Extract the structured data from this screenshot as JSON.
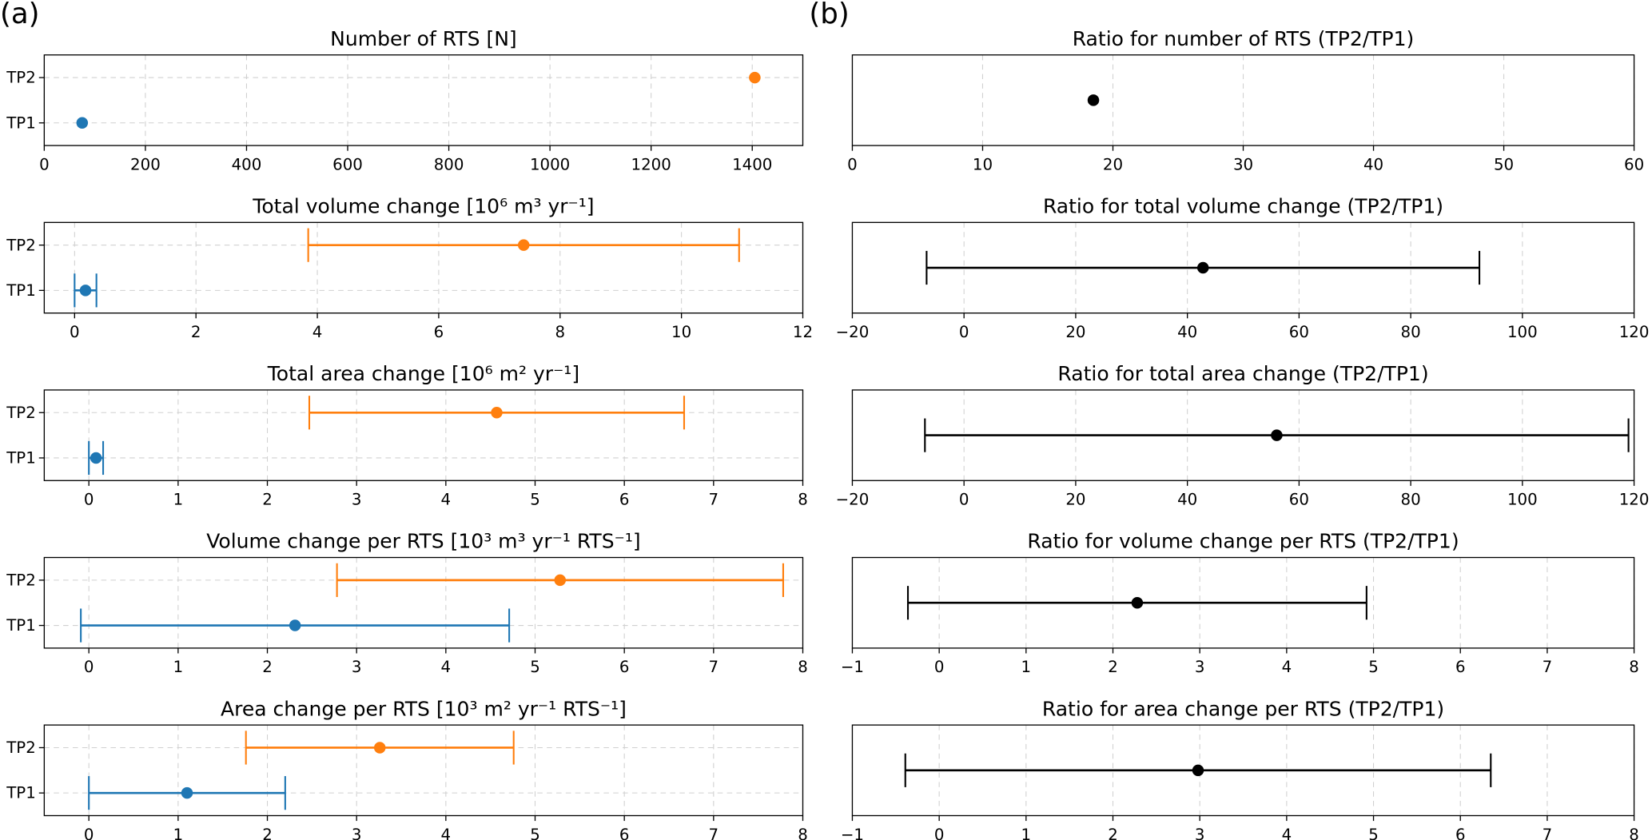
{
  "panel_labels": [
    "(a)",
    "(b)"
  ],
  "chart_data": [
    {
      "type": "errorbar",
      "title": "Number of RTS [N]",
      "categories": [
        "TP1",
        "TP2"
      ],
      "values": [
        75,
        1405
      ],
      "colors": [
        "#1f77b4",
        "#ff7f0e"
      ],
      "xlim": [
        0,
        1500
      ],
      "xticks": [
        0,
        200,
        400,
        600,
        800,
        1000,
        1200,
        1400
      ],
      "grid": true
    },
    {
      "type": "errorbar",
      "title": "Total volume change [10⁶ m³ yr⁻¹]",
      "categories": [
        "TP1",
        "TP2"
      ],
      "values": [
        0.18,
        7.4
      ],
      "errors": [
        0.18,
        3.55
      ],
      "colors": [
        "#1f77b4",
        "#ff7f0e"
      ],
      "xlim": [
        -0.5,
        12
      ],
      "xticks": [
        0,
        2,
        4,
        6,
        8,
        10,
        12
      ],
      "grid": true
    },
    {
      "type": "errorbar",
      "title": "Total area change [10⁶ m² yr⁻¹]",
      "categories": [
        "TP1",
        "TP2"
      ],
      "values": [
        0.08,
        4.57
      ],
      "errors": [
        0.08,
        2.1
      ],
      "colors": [
        "#1f77b4",
        "#ff7f0e"
      ],
      "xlim": [
        -0.5,
        8
      ],
      "xticks": [
        0,
        1,
        2,
        3,
        4,
        5,
        6,
        7,
        8
      ],
      "grid": true
    },
    {
      "type": "errorbar",
      "title": "Volume change per RTS [10³ m³ yr⁻¹ RTS⁻¹]",
      "categories": [
        "TP1",
        "TP2"
      ],
      "values": [
        2.31,
        5.28
      ],
      "errors": [
        2.4,
        2.5
      ],
      "colors": [
        "#1f77b4",
        "#ff7f0e"
      ],
      "xlim": [
        -0.5,
        8
      ],
      "xticks": [
        0,
        1,
        2,
        3,
        4,
        5,
        6,
        7,
        8
      ],
      "grid": true
    },
    {
      "type": "errorbar",
      "title": "Area change per RTS [10³ m² yr⁻¹ RTS⁻¹]",
      "categories": [
        "TP1",
        "TP2"
      ],
      "values": [
        1.1,
        3.26
      ],
      "errors": [
        1.1,
        1.5
      ],
      "colors": [
        "#1f77b4",
        "#ff7f0e"
      ],
      "xlim": [
        -0.5,
        8
      ],
      "xticks": [
        0,
        1,
        2,
        3,
        4,
        5,
        6,
        7,
        8
      ],
      "grid": true
    },
    {
      "type": "errorbar",
      "title": "Ratio for number of RTS (TP2/TP1)",
      "values": [
        18.5
      ],
      "colors": [
        "#000000"
      ],
      "xlim": [
        0,
        60
      ],
      "xticks": [
        0,
        10,
        20,
        30,
        40,
        50,
        60
      ],
      "grid": true
    },
    {
      "type": "errorbar",
      "title": "Ratio for total volume change (TP2/TP1)",
      "values": [
        42.8
      ],
      "errors": [
        49.5
      ],
      "colors": [
        "#000000"
      ],
      "xlim": [
        -20,
        120
      ],
      "xticks": [
        {
          "value": -20,
          "label": "−20"
        },
        0,
        20,
        40,
        60,
        80,
        100,
        120
      ],
      "grid": true
    },
    {
      "type": "errorbar",
      "title": "Ratio for total area change (TP2/TP1)",
      "values": [
        56
      ],
      "errors": [
        63
      ],
      "colors": [
        "#000000"
      ],
      "xlim": [
        -20,
        120
      ],
      "xticks": [
        {
          "value": -20,
          "label": "−20"
        },
        0,
        20,
        40,
        60,
        80,
        100,
        120
      ],
      "grid": true
    },
    {
      "type": "errorbar",
      "title": "Ratio for volume change per RTS (TP2/TP1)",
      "values": [
        2.28
      ],
      "errors": [
        2.64
      ],
      "colors": [
        "#000000"
      ],
      "xlim": [
        -1,
        8
      ],
      "xticks": [
        {
          "value": -1,
          "label": "−1"
        },
        0,
        1,
        2,
        3,
        4,
        5,
        6,
        7,
        8
      ],
      "grid": true
    },
    {
      "type": "errorbar",
      "title": "Ratio for area change per RTS (TP2/TP1)",
      "values": [
        2.98
      ],
      "errors": [
        3.37
      ],
      "colors": [
        "#000000"
      ],
      "xlim": [
        -1,
        8
      ],
      "xticks": [
        {
          "value": -1,
          "label": "−1"
        },
        0,
        1,
        2,
        3,
        4,
        5,
        6,
        7,
        8
      ],
      "grid": true
    }
  ]
}
